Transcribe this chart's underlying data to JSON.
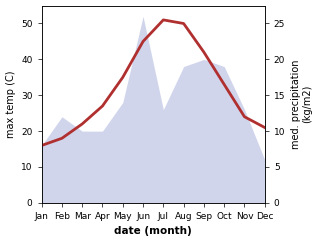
{
  "months": [
    "Jan",
    "Feb",
    "Mar",
    "Apr",
    "May",
    "Jun",
    "Jul",
    "Aug",
    "Sep",
    "Oct",
    "Nov",
    "Dec"
  ],
  "month_indices": [
    1,
    2,
    3,
    4,
    5,
    6,
    7,
    8,
    9,
    10,
    11,
    12
  ],
  "temperature": [
    16,
    18,
    22,
    27,
    35,
    45,
    51,
    50,
    42,
    33,
    24,
    21
  ],
  "precipitation": [
    8,
    12,
    10,
    10,
    14,
    26,
    13,
    19,
    20,
    19,
    13,
    6
  ],
  "temp_color": "#b03030",
  "precip_color": "#aab4dd",
  "precip_alpha": 0.55,
  "temp_ylim": [
    0,
    55
  ],
  "precip_ylim": [
    0,
    27.5
  ],
  "temp_yticks": [
    0,
    10,
    20,
    30,
    40,
    50
  ],
  "precip_yticks": [
    0,
    5,
    10,
    15,
    20,
    25
  ],
  "ylabel_left": "max temp (C)",
  "ylabel_right": "med. precipitation\n(kg/m2)",
  "xlabel": "date (month)",
  "linewidth": 2.0,
  "figwidth": 3.18,
  "figheight": 2.42,
  "dpi": 100
}
